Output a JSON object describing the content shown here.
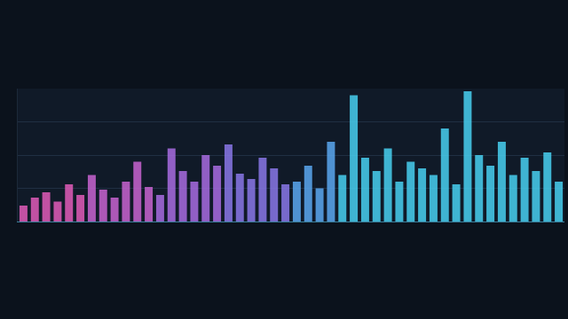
{
  "chart_data": {
    "type": "bar",
    "categories": [
      null,
      null,
      null,
      null,
      null,
      null,
      null,
      null,
      null,
      null,
      null,
      null,
      null,
      null,
      null,
      null,
      null,
      null,
      null,
      null,
      null,
      null,
      null,
      null,
      null,
      null,
      null,
      null,
      null,
      null,
      null,
      null,
      null,
      null,
      null,
      null,
      null,
      null,
      null,
      null,
      null,
      null,
      null,
      null,
      null,
      null,
      null,
      null
    ],
    "values": [
      12,
      18,
      22,
      15,
      28,
      20,
      35,
      24,
      18,
      30,
      45,
      26,
      20,
      55,
      38,
      30,
      50,
      42,
      58,
      36,
      32,
      48,
      40,
      28,
      30,
      42,
      25,
      60,
      35,
      95,
      48,
      38,
      55,
      30,
      45,
      40,
      35,
      70,
      28,
      98,
      50,
      42,
      60,
      35,
      48,
      38,
      52,
      30
    ],
    "colors": [
      "#e05cb8",
      "#e05cb8",
      "#e05cb8",
      "#e05cb8",
      "#e05cb8",
      "#e05cb8",
      "#c864d0",
      "#c864d0",
      "#c864d0",
      "#c864d0",
      "#c864d0",
      "#c864d0",
      "#a86ce0",
      "#a86ce0",
      "#a86ce0",
      "#a86ce0",
      "#a86ce0",
      "#a86ce0",
      "#8a78e8",
      "#8a78e8",
      "#8a78e8",
      "#8a78e8",
      "#8a78e8",
      "#8a78e8",
      "#5aa8f0",
      "#5aa8f0",
      "#5aa8f0",
      "#5aa8f0",
      "#48d0f0",
      "#48d0f0",
      "#48d0f0",
      "#48d0f0",
      "#48d0f0",
      "#48d0f0",
      "#48d0f0",
      "#48d0f0",
      "#48d0f0",
      "#48d0f0",
      "#48d0f0",
      "#48d0f0",
      "#48d0f0",
      "#48d0f0",
      "#48d0f0",
      "#48d0f0",
      "#48d0f0",
      "#48d0f0",
      "#48d0f0",
      "#48d0f0"
    ],
    "ylim": [
      0,
      100
    ],
    "yticks": [
      0,
      25,
      50,
      75,
      100
    ],
    "grid": true,
    "tick_labels": false
  }
}
